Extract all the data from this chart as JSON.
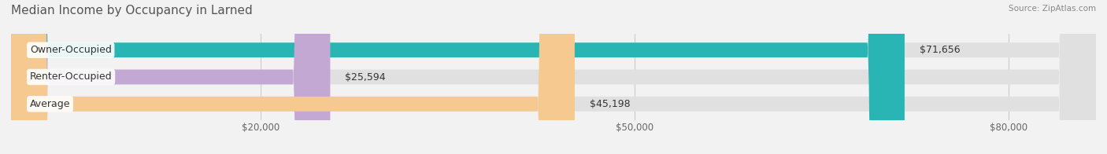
{
  "title": "Median Income by Occupancy in Larned",
  "source": "Source: ZipAtlas.com",
  "categories": [
    "Owner-Occupied",
    "Renter-Occupied",
    "Average"
  ],
  "values": [
    71656,
    25594,
    45198
  ],
  "bar_colors": [
    "#2ab5b5",
    "#c4a8d4",
    "#f5c990"
  ],
  "value_labels": [
    "$71,656",
    "$25,594",
    "$45,198"
  ],
  "xlim": [
    0,
    87000
  ],
  "xticks": [
    20000,
    50000,
    80000
  ],
  "xticklabels": [
    "$20,000",
    "$50,000",
    "$80,000"
  ],
  "background_color": "#f2f2f2",
  "bar_background_color": "#e0e0e0",
  "title_fontsize": 11,
  "label_fontsize": 9,
  "value_fontsize": 9,
  "bar_height": 0.55
}
